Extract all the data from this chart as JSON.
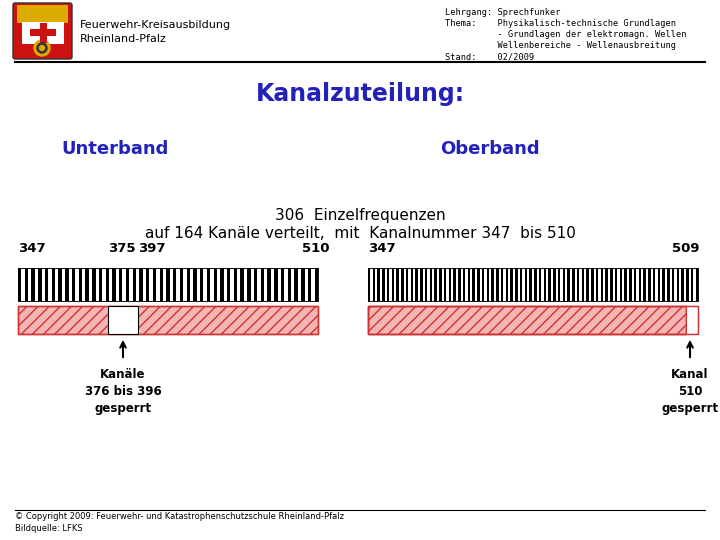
{
  "bg_color": "#ffffff",
  "org_text": "Feuerwehr-Kreisausbildung\nRheinland-Pfalz",
  "header_right_lines": [
    "Lehrgang: Sprechfunker",
    "Thema:    Physikalisch-technische Grundlagen",
    "          - Grundlagen der elektromagn. Wellen",
    "          Wellenbereiche - Wellenausbreitung",
    "Stand:    02/2009"
  ],
  "title": "Kanalzuteilung:",
  "title_color": "#2222bb",
  "unterband_text": "Unterband",
  "oberband_text": "Oberband",
  "band_label_color": "#2222bb",
  "freq_line1": "306  Einzelfrequenzen",
  "freq_line2": "auf 164 Kanäle verteilt,  mit  Kanalnummer 347  bis 510",
  "tick_labels_unter": [
    "347",
    "375",
    "397",
    "510"
  ],
  "tick_labels_ober": [
    "347",
    "509"
  ],
  "label1_text": "Kanäle\n376 bis 396\ngesperrt",
  "label2_text": "Kanal\n510\ngesperrt",
  "footer_text": "© Copyright 2009: Feuerwehr- und Katastrophenschutzschule Rheinland-Pfalz\nBildquelle: LFKS"
}
